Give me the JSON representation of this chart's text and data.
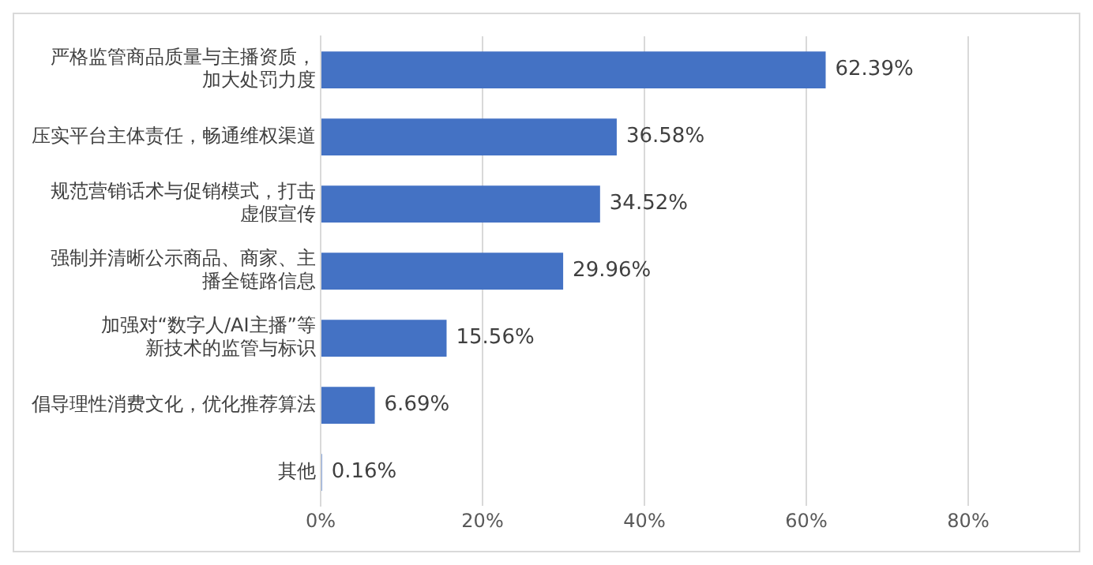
{
  "chart_data": {
    "type": "bar",
    "orientation": "horizontal",
    "categories": [
      "严格监管商品质量与主播资质，加大处罚力度",
      "压实平台主体责任，畅通维权渠道",
      "规范营销话术与促销模式，打击虚假宣传",
      "强制并清晰公示商品、商家、主播全链路信息",
      "加强对“数字人/AI主播”等新技术的监管与标识",
      "倡导理性消费文化，优化推荐算法",
      "其他"
    ],
    "values": [
      62.39,
      36.58,
      34.52,
      29.96,
      15.56,
      6.69,
      0.16
    ],
    "value_labels": [
      "62.39%",
      "36.58%",
      "34.52%",
      "29.96%",
      "15.56%",
      "6.69%",
      "0.16%"
    ],
    "color": "#4472c4",
    "xlim": [
      0,
      80
    ],
    "xticks": [
      {
        "value": 0,
        "label": "0%"
      },
      {
        "value": 20,
        "label": "20%"
      },
      {
        "value": 40,
        "label": "40%"
      },
      {
        "value": 60,
        "label": "60%"
      },
      {
        "value": 80,
        "label": "80%"
      }
    ],
    "grid": "x"
  }
}
